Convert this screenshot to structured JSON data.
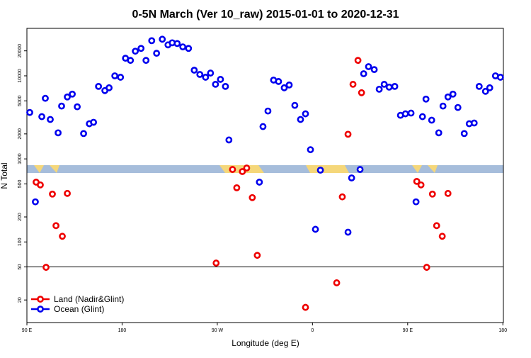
{
  "chart_data": {
    "type": "scatter",
    "title": "0-5N March (Ver 10_raw)   2015-01-01 to 2020-12-31",
    "x_label": "Longitude (deg E)",
    "y_label": "N Total",
    "xlim": [
      90,
      540.5
    ],
    "ylim": [
      10.7,
      37300
    ],
    "log_y": true,
    "legend": "lower left",
    "hline": 50,
    "xticks": [
      {
        "value": 90,
        "label": "90 E"
      },
      {
        "value": 180,
        "label": "180"
      },
      {
        "value": 270,
        "label": "90 W"
      },
      {
        "value": 360,
        "label": "0"
      },
      {
        "value": 450,
        "label": "90 E"
      },
      {
        "value": 540,
        "label": "180"
      }
    ],
    "yticks": [
      20,
      50,
      100,
      200,
      500,
      1000,
      2000,
      5000,
      10000,
      20000
    ],
    "series": [
      {
        "name": "Land (Nadir&Glint)",
        "color": "#ee0000",
        "x": [
          98.7,
          102.7,
          108.1,
          114.1,
          117.5,
          123.5,
          128.2,
          268.9,
          284.4,
          288.4,
          293.7,
          297.8,
          303.1,
          307.8,
          353.4,
          382.9,
          388.2,
          393.6,
          398.3,
          403.0,
          406.4,
          458.6,
          462.6,
          468.0,
          473.4,
          477.4,
          482.7,
          488.1
        ],
        "values": [
          525,
          486,
          49.5,
          377,
          157,
          117,
          384,
          55.7,
          746,
          449,
          704,
          776,
          342,
          69,
          16.3,
          32.2,
          349,
          1980,
          7910,
          15350,
          6260,
          536,
          486,
          49.5,
          377,
          157,
          117,
          384
        ]
      },
      {
        "name": "Ocean (Glint)",
        "color": "#0000ee",
        "x": [
          92.7,
          98.0,
          104.1,
          107.4,
          112.1,
          119.5,
          122.8,
          128.2,
          132.9,
          137.6,
          143.6,
          149.0,
          153.0,
          157.7,
          163.7,
          167.7,
          173.1,
          178.5,
          183.2,
          187.9,
          192.5,
          197.9,
          202.6,
          208.0,
          212.6,
          218.0,
          223.4,
          227.4,
          232.1,
          237.4,
          242.8,
          248.2,
          253.5,
          258.9,
          263.6,
          268.3,
          273.0,
          277.7,
          281.0,
          309.8,
          313.2,
          317.9,
          323.2,
          327.9,
          333.3,
          338.0,
          343.3,
          348.7,
          353.4,
          358.1,
          362.8,
          367.5,
          393.6,
          397.0,
          405.0,
          408.4,
          413.0,
          418.4,
          423.1,
          427.8,
          432.5,
          437.8,
          443.2,
          447.9,
          453.2,
          457.9,
          464.0,
          467.3,
          472.7,
          479.4,
          483.4,
          488.1,
          492.8,
          497.5,
          503.5,
          508.2,
          512.9,
          517.6,
          523.6,
          527.6,
          533.0,
          537.7
        ],
        "values": [
          3620,
          304,
          3225,
          5360,
          2985,
          2060,
          4325,
          5570,
          6025,
          4240,
          2020,
          2650,
          2760,
          7460,
          6640,
          7180,
          10000,
          9620,
          16300,
          15350,
          19800,
          21400,
          15350,
          26500,
          18700,
          27600,
          23600,
          25000,
          24500,
          22300,
          21400,
          11700,
          10400,
          9620,
          10800,
          7910,
          9070,
          7460,
          1690,
          525,
          2450,
          3770,
          8890,
          8550,
          7180,
          7760,
          4410,
          2985,
          3490,
          1290,
          142,
          732,
          131,
          590,
          746,
          10600,
          12900,
          11900,
          6900,
          7910,
          7320,
          7460,
          3350,
          3490,
          3560,
          304,
          3225,
          5250,
          2925,
          2060,
          4325,
          5570,
          6025,
          4160,
          2020,
          2650,
          2705,
          7460,
          6510,
          7180,
          10000,
          9620
        ]
      }
    ]
  }
}
